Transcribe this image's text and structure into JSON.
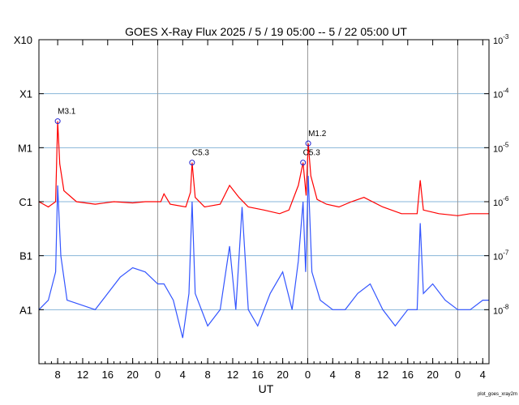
{
  "chart_data": {
    "type": "line",
    "title": "GOES X-Ray Flux   2025  /  5  /  19   05:00 --  5  /  22   05:00   UT",
    "xlabel": "UT",
    "footer_label": "plot_goes_xray2m",
    "x_start": "2025-05-19 05:00",
    "x_end": "2025-05-22 05:00",
    "x_tick_labels": [
      "8",
      "12",
      "16",
      "20",
      "0",
      "4",
      "8",
      "12",
      "16",
      "20",
      "0",
      "4",
      "8",
      "12",
      "16",
      "20",
      "0",
      "4"
    ],
    "day_boundaries": [
      "2025-05-20 00:00",
      "2025-05-21 00:00",
      "2025-05-22 00:00"
    ],
    "y_scale": "log",
    "ylim": [
      1e-09,
      0.001
    ],
    "y_left_labels": [
      {
        "value": 1e-08,
        "label": "A1"
      },
      {
        "value": 1e-07,
        "label": "B1"
      },
      {
        "value": 1e-06,
        "label": "C1"
      },
      {
        "value": 1e-05,
        "label": "M1"
      },
      {
        "value": 0.0001,
        "label": "X1"
      },
      {
        "value": 0.001,
        "label": "X10"
      }
    ],
    "y_right_labels": [
      {
        "value": 1e-08,
        "base": "10",
        "exp": "-8"
      },
      {
        "value": 1e-07,
        "base": "10",
        "exp": "-7"
      },
      {
        "value": 1e-06,
        "base": "10",
        "exp": "-6"
      },
      {
        "value": 1e-05,
        "base": "10",
        "exp": "-5"
      },
      {
        "value": 0.0001,
        "base": "10",
        "exp": "-4"
      },
      {
        "value": 0.001,
        "base": "10",
        "exp": "-3"
      }
    ],
    "grid": true,
    "colors": {
      "long": "#ff0000",
      "long_secondary": "#ff8c00",
      "short": "#3355ff",
      "short_secondary": "#6a0dad",
      "grid": "#87b4d8",
      "day_line": "#999999",
      "flare_marker": "#2020d0"
    },
    "flare_annotations": [
      {
        "label": "M3.1",
        "time": "2025-05-19 08:00",
        "flux": 3.1e-05
      },
      {
        "label": "C5.3",
        "time": "2025-05-20 05:30",
        "flux": 5.3e-06
      },
      {
        "label": "C5.3",
        "time": "2025-05-20 23:15",
        "flux": 5.3e-06
      },
      {
        "label": "M1.2",
        "time": "2025-05-21 00:05",
        "flux": 1.2e-05
      }
    ],
    "series": [
      {
        "color": "#ff0000",
        "points": [
          [
            "2025-05-19 05:00",
            1e-06
          ],
          [
            "2025-05-19 06:30",
            8e-07
          ],
          [
            "2025-05-19 07:40",
            1e-06
          ],
          [
            "2025-05-19 08:00",
            3.1e-05
          ],
          [
            "2025-05-19 08:20",
            5e-06
          ],
          [
            "2025-05-19 09:00",
            1.6e-06
          ],
          [
            "2025-05-19 11:00",
            1e-06
          ],
          [
            "2025-05-19 14:00",
            9e-07
          ],
          [
            "2025-05-19 17:00",
            1e-06
          ],
          [
            "2025-05-19 20:00",
            9.5e-07
          ],
          [
            "2025-05-19 22:00",
            1e-06
          ],
          [
            "2025-05-20 00:30",
            1e-06
          ],
          [
            "2025-05-20 01:00",
            1.4e-06
          ],
          [
            "2025-05-20 02:00",
            9e-07
          ],
          [
            "2025-05-20 04:30",
            8e-07
          ],
          [
            "2025-05-20 05:15",
            1.5e-06
          ],
          [
            "2025-05-20 05:30",
            5.3e-06
          ],
          [
            "2025-05-20 06:00",
            1.2e-06
          ],
          [
            "2025-05-20 07:30",
            8e-07
          ],
          [
            "2025-05-20 10:00",
            9e-07
          ],
          [
            "2025-05-20 11:30",
            2e-06
          ],
          [
            "2025-05-20 13:00",
            1.2e-06
          ],
          [
            "2025-05-20 14:30",
            8e-07
          ],
          [
            "2025-05-20 17:00",
            7e-07
          ],
          [
            "2025-05-20 19:30",
            6e-07
          ],
          [
            "2025-05-20 21:00",
            7e-07
          ],
          [
            "2025-05-20 22:30",
            2e-06
          ],
          [
            "2025-05-20 23:15",
            5.3e-06
          ],
          [
            "2025-05-20 23:45",
            1.3e-06
          ],
          [
            "2025-05-21 00:05",
            1.2e-05
          ],
          [
            "2025-05-21 00:30",
            3e-06
          ],
          [
            "2025-05-21 01:30",
            1.1e-06
          ],
          [
            "2025-05-21 03:00",
            9e-07
          ],
          [
            "2025-05-21 05:00",
            8e-07
          ],
          [
            "2025-05-21 07:00",
            1e-06
          ],
          [
            "2025-05-21 09:00",
            1.2e-06
          ],
          [
            "2025-05-21 12:00",
            8e-07
          ],
          [
            "2025-05-21 15:00",
            6e-07
          ],
          [
            "2025-05-21 17:30",
            6e-07
          ],
          [
            "2025-05-21 18:00",
            2.5e-06
          ],
          [
            "2025-05-21 18:30",
            7e-07
          ],
          [
            "2025-05-21 21:00",
            6e-07
          ],
          [
            "2025-05-22 00:00",
            5.5e-07
          ],
          [
            "2025-05-22 02:00",
            6e-07
          ],
          [
            "2025-05-22 05:00",
            6e-07
          ]
        ]
      },
      {
        "color": "#3355ff",
        "points": [
          [
            "2025-05-19 05:00",
            1e-08
          ],
          [
            "2025-05-19 06:30",
            1.5e-08
          ],
          [
            "2025-05-19 07:40",
            5e-08
          ],
          [
            "2025-05-19 08:00",
            2e-06
          ],
          [
            "2025-05-19 08:30",
            1e-07
          ],
          [
            "2025-05-19 09:30",
            1.5e-08
          ],
          [
            "2025-05-19 12:00",
            1.2e-08
          ],
          [
            "2025-05-19 14:00",
            1e-08
          ],
          [
            "2025-05-19 16:00",
            2e-08
          ],
          [
            "2025-05-19 18:00",
            4e-08
          ],
          [
            "2025-05-19 20:00",
            6e-08
          ],
          [
            "2025-05-19 22:00",
            5e-08
          ],
          [
            "2025-05-20 00:00",
            3e-08
          ],
          [
            "2025-05-20 01:00",
            3e-08
          ],
          [
            "2025-05-20 02:30",
            1.5e-08
          ],
          [
            "2025-05-20 04:00",
            3e-09
          ],
          [
            "2025-05-20 05:00",
            2e-08
          ],
          [
            "2025-05-20 05:30",
            1e-06
          ],
          [
            "2025-05-20 06:00",
            2e-08
          ],
          [
            "2025-05-20 08:00",
            5e-09
          ],
          [
            "2025-05-20 10:00",
            1e-08
          ],
          [
            "2025-05-20 11:30",
            1.5e-07
          ],
          [
            "2025-05-20 12:30",
            1e-08
          ],
          [
            "2025-05-20 13:30",
            8e-07
          ],
          [
            "2025-05-20 14:30",
            1e-08
          ],
          [
            "2025-05-20 16:00",
            5e-09
          ],
          [
            "2025-05-20 18:00",
            2e-08
          ],
          [
            "2025-05-20 20:00",
            5e-08
          ],
          [
            "2025-05-20 21:30",
            1e-08
          ],
          [
            "2025-05-20 22:30",
            8e-08
          ],
          [
            "2025-05-20 23:15",
            1e-06
          ],
          [
            "2025-05-20 23:40",
            5e-08
          ],
          [
            "2025-05-21 00:05",
            3e-06
          ],
          [
            "2025-05-21 00:40",
            5e-08
          ],
          [
            "2025-05-21 02:00",
            1.5e-08
          ],
          [
            "2025-05-21 04:00",
            1e-08
          ],
          [
            "2025-05-21 06:00",
            1e-08
          ],
          [
            "2025-05-21 08:00",
            2e-08
          ],
          [
            "2025-05-21 10:00",
            3e-08
          ],
          [
            "2025-05-21 12:00",
            1e-08
          ],
          [
            "2025-05-21 14:00",
            5e-09
          ],
          [
            "2025-05-21 16:00",
            1e-08
          ],
          [
            "2025-05-21 17:30",
            1e-08
          ],
          [
            "2025-05-21 18:00",
            4e-07
          ],
          [
            "2025-05-21 18:30",
            2e-08
          ],
          [
            "2025-05-21 20:00",
            3e-08
          ],
          [
            "2025-05-21 22:00",
            1.5e-08
          ],
          [
            "2025-05-22 00:00",
            1e-08
          ],
          [
            "2025-05-22 02:00",
            1e-08
          ],
          [
            "2025-05-22 04:00",
            1.5e-08
          ],
          [
            "2025-05-22 05:00",
            1.5e-08
          ]
        ]
      }
    ]
  }
}
